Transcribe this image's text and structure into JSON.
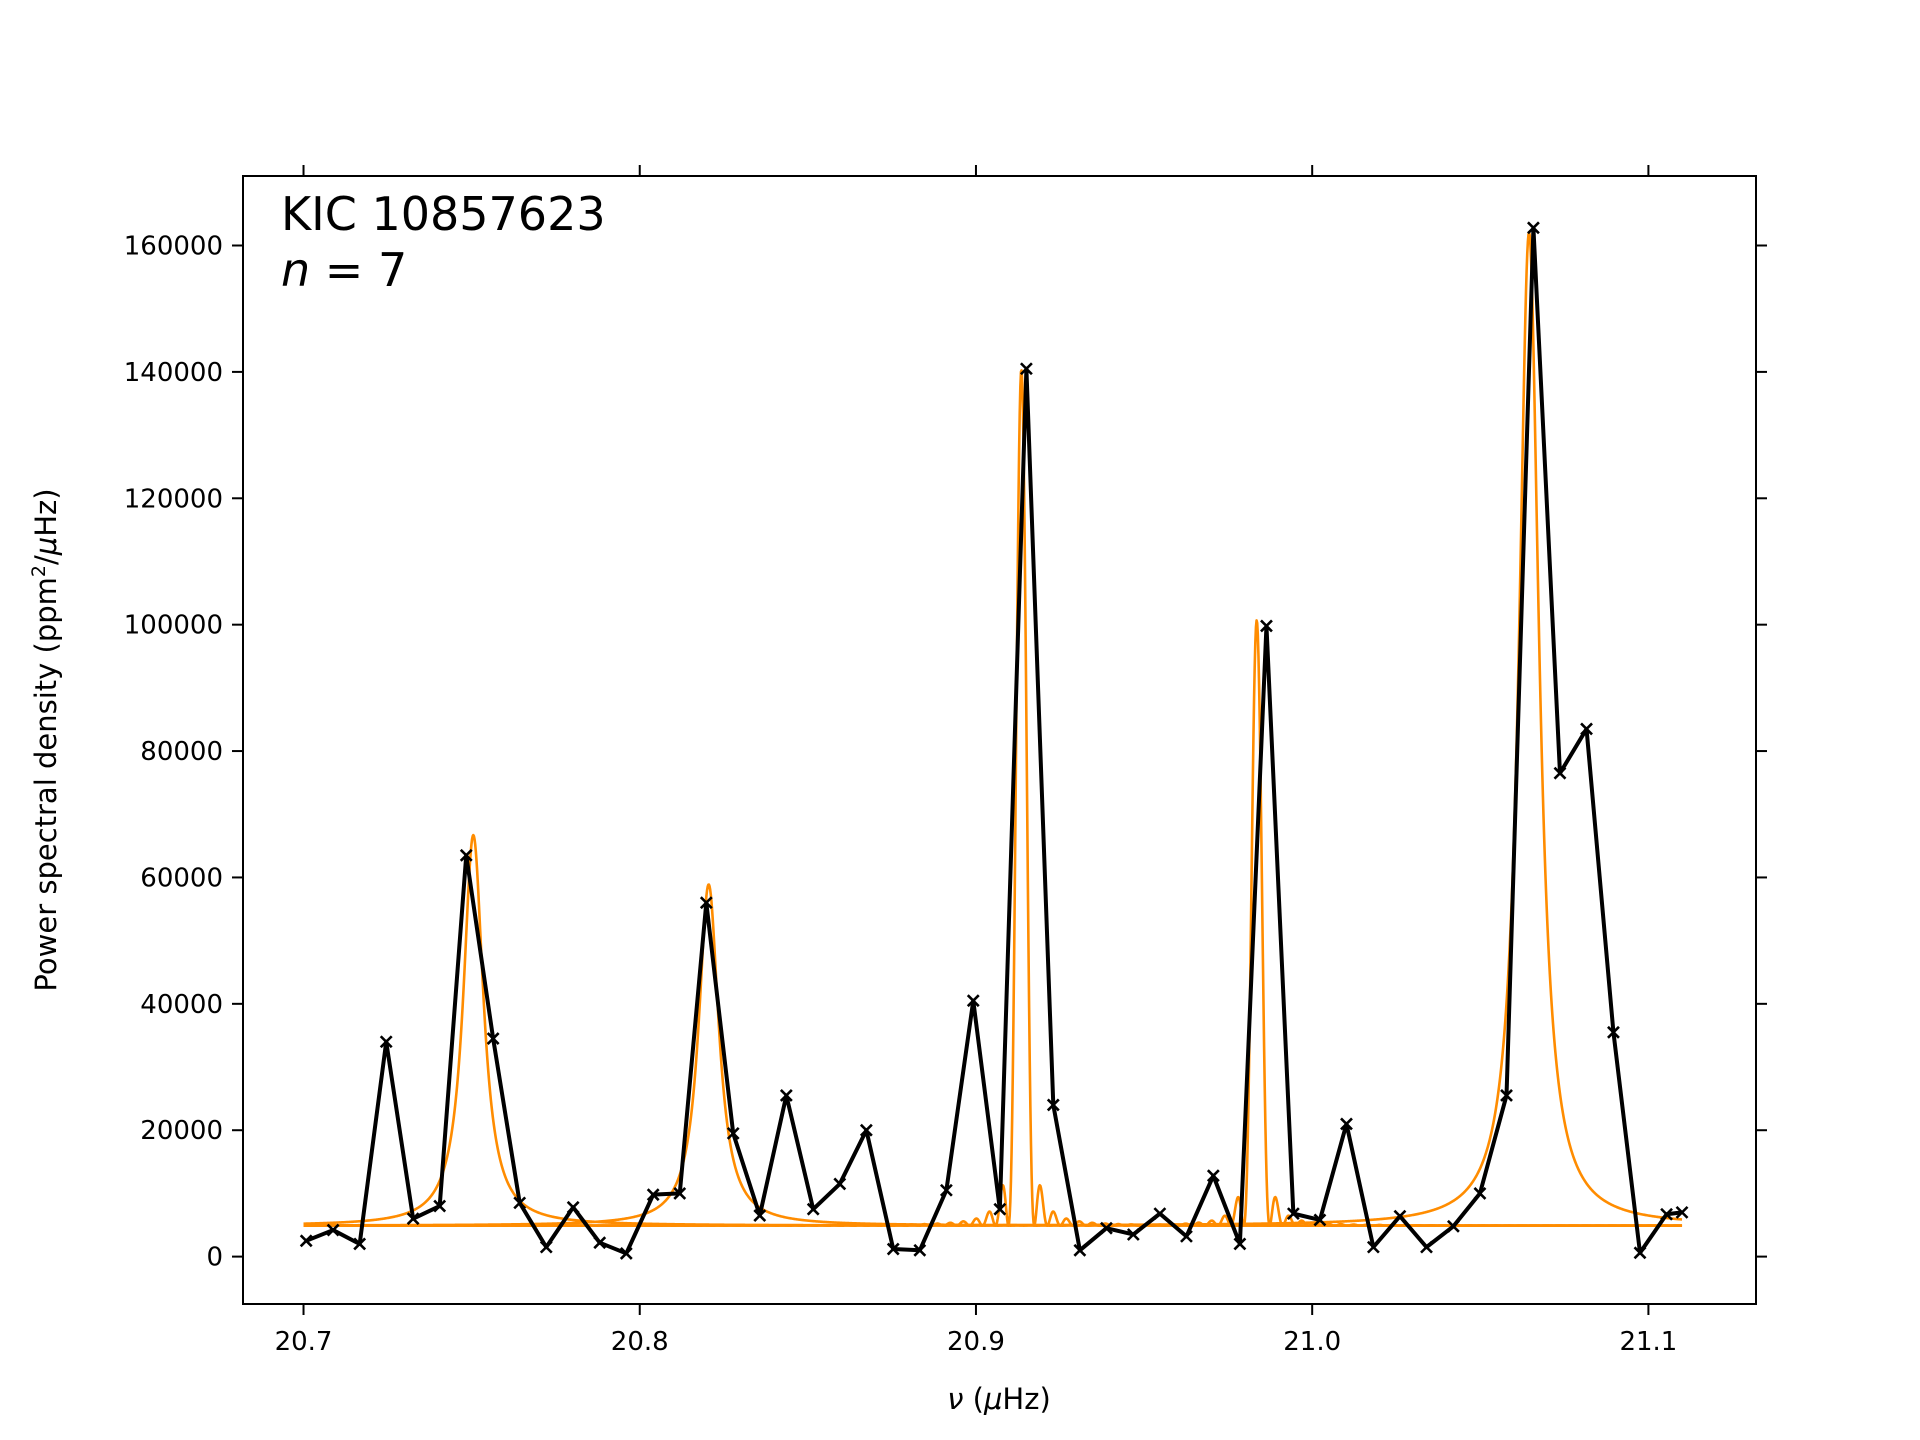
{
  "chart_data": {
    "type": "line",
    "title": "",
    "annotation": {
      "line1": "KIC 10857623",
      "line2_var": "n",
      "line2_rest": " = 7"
    },
    "xlabel": {
      "sym": "ν",
      "unit_pre": " (",
      "mu": "μ",
      "unit_post": "Hz)"
    },
    "ylabel": {
      "pre": "Power spectral density (ppm",
      "sup": "2",
      "mid": "/",
      "mu": "μ",
      "post": "Hz)"
    },
    "xlim": [
      20.682,
      21.132
    ],
    "ylim": [
      -7500,
      171000
    ],
    "x_ticks": [
      20.7,
      20.8,
      20.9,
      21.0,
      21.1
    ],
    "x_tick_labels": [
      "20.7",
      "20.8",
      "20.9",
      "21.0",
      "21.1"
    ],
    "y_ticks": [
      0,
      20000,
      40000,
      60000,
      80000,
      100000,
      120000,
      140000,
      160000
    ],
    "y_tick_labels": [
      "0",
      "20000",
      "40000",
      "60000",
      "80000",
      "100000",
      "120000",
      "140000",
      "160000"
    ],
    "grid": false,
    "colors": {
      "data": "#000000",
      "model": "#ff8c00"
    },
    "series": [
      {
        "role": "data",
        "markers": "x",
        "x": [
          20.7008,
          20.7088,
          20.7167,
          20.7246,
          20.7326,
          20.7405,
          20.7484,
          20.7564,
          20.7643,
          20.7722,
          20.7802,
          20.7881,
          20.796,
          20.804,
          20.8119,
          20.8198,
          20.8278,
          20.8357,
          20.8436,
          20.8516,
          20.8595,
          20.8674,
          20.8754,
          20.8833,
          20.8912,
          20.8992,
          20.9071,
          20.915,
          20.923,
          20.9309,
          20.9388,
          20.9468,
          20.9547,
          20.9626,
          20.9706,
          20.9785,
          20.9864,
          20.9944,
          21.0023,
          21.0102,
          21.0182,
          21.0261,
          21.034,
          21.042,
          21.0499,
          21.0578,
          21.0658,
          21.0737,
          21.0816,
          21.0896,
          21.0975,
          21.1054,
          21.11
        ],
        "y": [
          2500,
          4200,
          2000,
          34000,
          6000,
          8000,
          63500,
          34500,
          8500,
          1500,
          7800,
          2200,
          500,
          9800,
          10000,
          56000,
          19500,
          6500,
          25500,
          7500,
          11500,
          20000,
          1200,
          1000,
          10500,
          40500,
          7500,
          140500,
          24000,
          1000,
          4500,
          3500,
          6800,
          3200,
          12800,
          2000,
          99800,
          6800,
          5800,
          21000,
          1500,
          6400,
          1500,
          4800,
          10000,
          25500,
          162800,
          76500,
          83500,
          35500,
          600,
          6700,
          7000
        ]
      },
      {
        "role": "model-mode",
        "profile": "lorentzian",
        "freq": 20.7505,
        "height": 61800,
        "width": 0.0036,
        "background": 4900
      },
      {
        "role": "model-mode",
        "profile": "lorentzian",
        "freq": 20.8205,
        "height": 54000,
        "width": 0.0036,
        "background": 4900
      },
      {
        "role": "model-mode",
        "profile": "sinc2",
        "freq": 20.9135,
        "height": 135500,
        "width": 0.00385,
        "background": 4900
      },
      {
        "role": "model-mode",
        "profile": "sinc2",
        "freq": 20.9835,
        "height": 95800,
        "width": 0.00385,
        "background": 4900
      },
      {
        "role": "model-mode",
        "profile": "lorentzian",
        "freq": 21.0645,
        "height": 157200,
        "width": 0.0036,
        "background": 4900
      }
    ]
  }
}
